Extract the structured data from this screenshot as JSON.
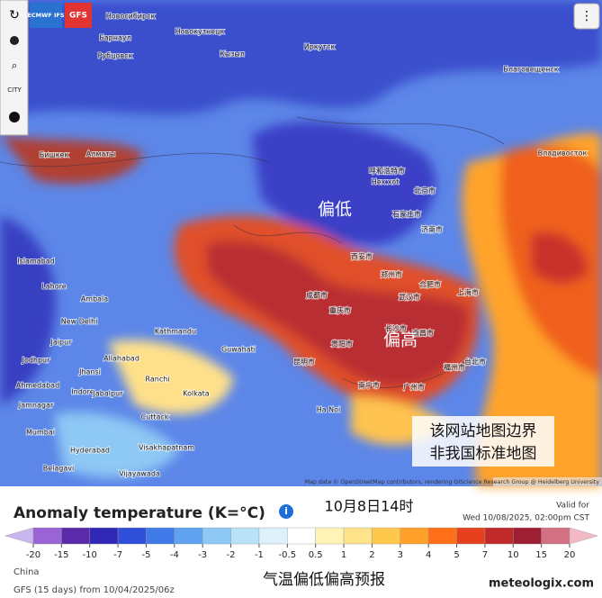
{
  "toolbar": {
    "models": [
      "ECMWF IFS",
      "GFS"
    ],
    "city_toggle": "CITY"
  },
  "map": {
    "annotations": {
      "low": "偏低",
      "high": "偏高",
      "disclaimer_1": "该网站地图边界",
      "disclaimer_2": "非我国标准地图"
    },
    "attribution": "Map data © OpenStreetMap contributors, rendering GIScience Research Group @ Heidelberg University",
    "cities": [
      "Новосибирск",
      "Барнаул",
      "Новокузнецк",
      "Рубцовск",
      "Кызыл",
      "Иркутск",
      "Благовещенск",
      "Бишкек",
      "Алматы",
      "呼和浩特市",
      "Hex xot",
      "北京市",
      "石家庄市",
      "济南市",
      "Владивосток",
      "Islamabad",
      "Lahore",
      "Ambala",
      "New Delhi",
      "Kathmandu",
      "Jaipur",
      "Jodhpur",
      "Allahabad",
      "Jhansi",
      "Ahmedabad",
      "Indore",
      "Jabalpur",
      "Ranchi",
      "Kolkata",
      "Guwahati",
      "Jamnagar",
      "Mumbai",
      "Cuttack",
      "Hyderabad",
      "Visakhapatnam",
      "Belagavi",
      "Vijayawada",
      "Ha Noi",
      "成都市",
      "重庆市",
      "西安市",
      "郑州市",
      "武汉市",
      "合肥市",
      "上海市",
      "长沙市",
      "昆明市",
      "贵阳市",
      "南昌市",
      "福州市",
      "广州市",
      "台北市",
      "南宁市"
    ]
  },
  "legend": {
    "title": "Anomaly temperature (K=°C)",
    "time_note": "10月8日14时",
    "valid_label": "Valid for",
    "valid_time": "Wed 10/08/2025, 02:00pm CST",
    "ticks": [
      -20,
      -15,
      -10,
      -7,
      -5,
      -4,
      -3,
      -2,
      -1,
      -0.5,
      0.5,
      1,
      2,
      3,
      4,
      5,
      7,
      10,
      15,
      20
    ],
    "colors": [
      "#c9b6ef",
      "#9a64d6",
      "#5a2aa8",
      "#3228b8",
      "#2f4fd8",
      "#3f7ae8",
      "#5fa2ef",
      "#8ec8f4",
      "#b8e2f8",
      "#ddf1fa",
      "#ffffff",
      "#fff4b6",
      "#ffe38a",
      "#ffc74c",
      "#ffa02a",
      "#ff7018",
      "#e6401e",
      "#c02a2a",
      "#9e1e34",
      "#d27084",
      "#f2b8c4"
    ]
  },
  "footer": {
    "region": "China",
    "run": "GFS (15 days) from 10/04/2025/06z",
    "caption": "气温偏低偏高预报",
    "watermark": "meteologix.com"
  }
}
